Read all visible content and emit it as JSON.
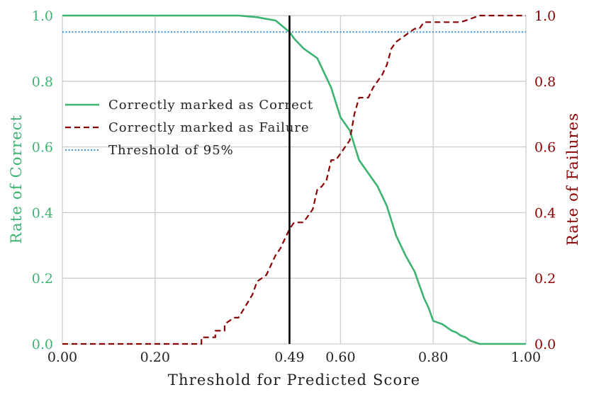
{
  "chart_data": {
    "type": "line",
    "xlabel": "Threshold for Predicted Score",
    "ylabel_left": "Rate of Correct",
    "ylabel_right": "Rate of Failures",
    "xlim": [
      0,
      1
    ],
    "ylim_left": [
      0,
      1
    ],
    "ylim_right": [
      0,
      1
    ],
    "x_ticks": [
      0.0,
      0.2,
      0.49,
      0.6,
      0.8,
      1.0
    ],
    "x_tick_labels": [
      "0.00",
      "0.20",
      "0.49",
      "0.60",
      "0.80",
      "1.00"
    ],
    "y_ticks": [
      0.0,
      0.2,
      0.4,
      0.6,
      0.8,
      1.0
    ],
    "y_tick_labels": [
      "0.0",
      "0.2",
      "0.4",
      "0.6",
      "0.8",
      "1.0"
    ],
    "grid": true,
    "legend_position": "upper-left",
    "vertical_marker_x": 0.49,
    "colors": {
      "correct": "#3cb371",
      "failure": "#8b0000",
      "threshold": "#3a8fd6",
      "marker": "#000000",
      "grid": "#cccccc"
    },
    "series": [
      {
        "name": "Correctly marked as Correct",
        "axis": "left",
        "style": "solid",
        "x": [
          0.0,
          0.1,
          0.2,
          0.3,
          0.38,
          0.42,
          0.46,
          0.49,
          0.5,
          0.52,
          0.54,
          0.55,
          0.56,
          0.58,
          0.6,
          0.62,
          0.64,
          0.66,
          0.68,
          0.7,
          0.72,
          0.74,
          0.76,
          0.78,
          0.79,
          0.8,
          0.81,
          0.82,
          0.83,
          0.84,
          0.85,
          0.86,
          0.87,
          0.88,
          0.9,
          1.0
        ],
        "y": [
          1.0,
          1.0,
          1.0,
          1.0,
          1.0,
          0.995,
          0.985,
          0.95,
          0.93,
          0.9,
          0.88,
          0.87,
          0.84,
          0.78,
          0.69,
          0.65,
          0.56,
          0.52,
          0.48,
          0.42,
          0.33,
          0.27,
          0.22,
          0.14,
          0.11,
          0.07,
          0.065,
          0.06,
          0.05,
          0.04,
          0.035,
          0.025,
          0.02,
          0.01,
          0.0,
          0.0
        ]
      },
      {
        "name": "Correctly marked as Failure",
        "axis": "right",
        "style": "dashed",
        "x": [
          0.0,
          0.1,
          0.2,
          0.3,
          0.3,
          0.33,
          0.33,
          0.35,
          0.35,
          0.37,
          0.38,
          0.41,
          0.42,
          0.44,
          0.45,
          0.46,
          0.47,
          0.48,
          0.49,
          0.5,
          0.51,
          0.52,
          0.54,
          0.55,
          0.56,
          0.57,
          0.58,
          0.59,
          0.6,
          0.61,
          0.62,
          0.63,
          0.64,
          0.65,
          0.66,
          0.67,
          0.68,
          0.69,
          0.7,
          0.71,
          0.72,
          0.73,
          0.74,
          0.75,
          0.76,
          0.77,
          0.78,
          0.79,
          0.8,
          0.81,
          0.82,
          0.83,
          0.86,
          0.9,
          0.91,
          0.95,
          1.0
        ],
        "y": [
          0.0,
          0.0,
          0.0,
          0.0,
          0.02,
          0.02,
          0.04,
          0.04,
          0.06,
          0.08,
          0.08,
          0.15,
          0.19,
          0.21,
          0.24,
          0.27,
          0.29,
          0.32,
          0.35,
          0.37,
          0.37,
          0.37,
          0.41,
          0.47,
          0.48,
          0.5,
          0.56,
          0.56,
          0.58,
          0.6,
          0.62,
          0.7,
          0.75,
          0.75,
          0.75,
          0.78,
          0.8,
          0.82,
          0.85,
          0.9,
          0.92,
          0.93,
          0.94,
          0.95,
          0.96,
          0.96,
          0.98,
          0.98,
          0.98,
          0.98,
          0.98,
          0.98,
          0.98,
          1.0,
          1.0,
          1.0,
          1.0
        ]
      },
      {
        "name": "Threshold of 95%",
        "axis": "left",
        "style": "dotted",
        "x": [
          0.0,
          1.0
        ],
        "y": [
          0.95,
          0.95
        ]
      }
    ]
  }
}
